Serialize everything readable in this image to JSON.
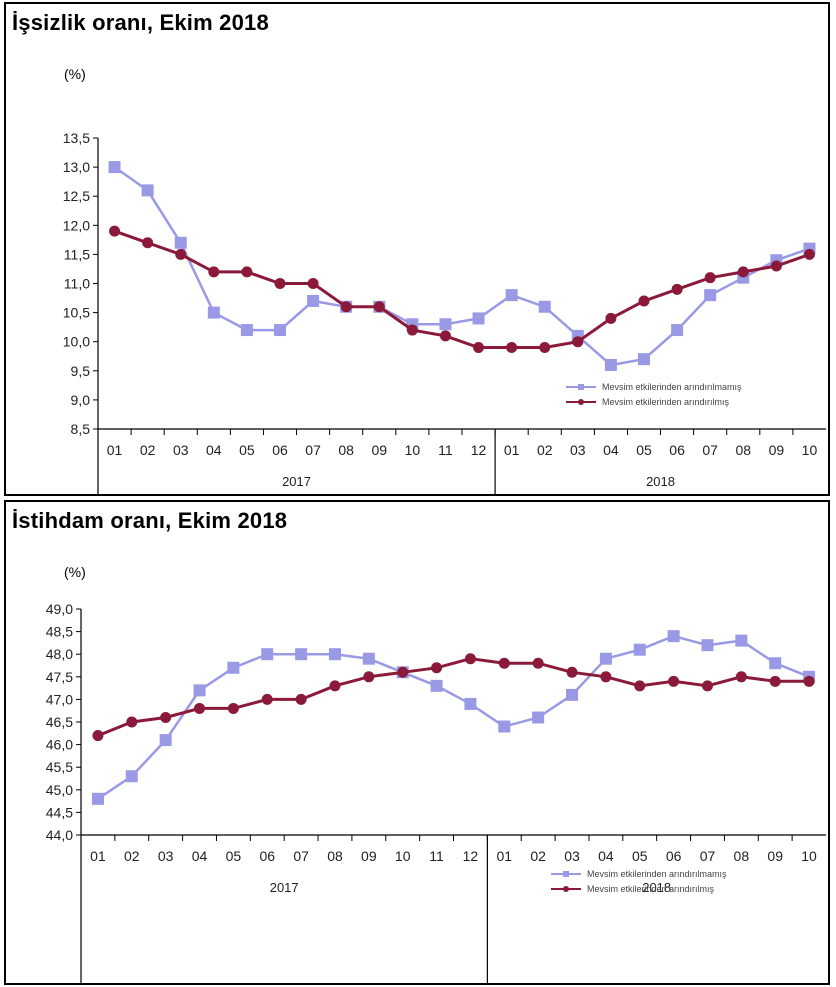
{
  "chart_data": [
    {
      "type": "line",
      "title": "İşsizlik oranı, Ekim 2018",
      "ylabel": "(%)",
      "xlabel": "",
      "ylim": [
        8.5,
        13.5
      ],
      "yticks": [
        "13,5",
        "13,0",
        "12,5",
        "12,0",
        "11,5",
        "11,0",
        "10,5",
        "10,0",
        "9,5",
        "9,0",
        "8,5"
      ],
      "ytick_values": [
        13.5,
        13.0,
        12.5,
        12.0,
        11.5,
        11.0,
        10.5,
        10.0,
        9.5,
        9.0,
        8.5
      ],
      "categories": [
        "01",
        "02",
        "03",
        "04",
        "05",
        "06",
        "07",
        "08",
        "09",
        "10",
        "11",
        "12",
        "01",
        "02",
        "03",
        "04",
        "05",
        "06",
        "07",
        "08",
        "09",
        "10"
      ],
      "years": [
        {
          "label": "2017",
          "span": 12
        },
        {
          "label": "2018",
          "span": 10
        }
      ],
      "legend_position": "bottom-right",
      "grid": false,
      "series": [
        {
          "name": "Mevsim etkilerinden arındırılmamış",
          "color": "#9999e6",
          "marker": "square",
          "values": [
            13.0,
            12.6,
            11.7,
            10.5,
            10.2,
            10.2,
            10.7,
            10.6,
            10.6,
            10.3,
            10.3,
            10.4,
            10.8,
            10.6,
            10.1,
            9.6,
            9.7,
            10.2,
            10.8,
            11.1,
            11.4,
            11.6
          ]
        },
        {
          "name": "Mevsim etkilerinden arındırılmış",
          "color": "#8b1a3a",
          "marker": "circle",
          "values": [
            11.9,
            11.7,
            11.5,
            11.2,
            11.2,
            11.0,
            11.0,
            10.6,
            10.6,
            10.2,
            10.1,
            9.9,
            9.9,
            9.9,
            10.0,
            10.4,
            10.7,
            10.9,
            11.1,
            11.2,
            11.3,
            11.5
          ]
        }
      ]
    },
    {
      "type": "line",
      "title": "İstihdam oranı, Ekim 2018",
      "ylabel": "(%)",
      "xlabel": "",
      "ylim": [
        44.0,
        49.0
      ],
      "yticks": [
        "49,0",
        "48,5",
        "48,0",
        "47,5",
        "47,0",
        "46,5",
        "46,0",
        "45,5",
        "45,0",
        "44,5",
        "44,0"
      ],
      "ytick_values": [
        49.0,
        48.5,
        48.0,
        47.5,
        47.0,
        46.5,
        46.0,
        45.5,
        45.0,
        44.5,
        44.0
      ],
      "categories": [
        "01",
        "02",
        "03",
        "04",
        "05",
        "06",
        "07",
        "08",
        "09",
        "10",
        "11",
        "12",
        "01",
        "02",
        "03",
        "04",
        "05",
        "06",
        "07",
        "08",
        "09",
        "10"
      ],
      "years": [
        {
          "label": "2017",
          "span": 12
        },
        {
          "label": "2018",
          "span": 10
        }
      ],
      "legend_position": "bottom-right",
      "grid": false,
      "series": [
        {
          "name": "Mevsim etkilerinden arındırılmamış",
          "color": "#9999e6",
          "marker": "square",
          "values": [
            44.8,
            45.3,
            46.1,
            47.2,
            47.7,
            48.0,
            48.0,
            48.0,
            47.9,
            47.6,
            47.3,
            46.9,
            46.4,
            46.6,
            47.1,
            47.9,
            48.1,
            48.4,
            48.2,
            48.3,
            47.8,
            47.5
          ]
        },
        {
          "name": "Mevsim etkilerinden arındırılmış",
          "color": "#8b1a3a",
          "marker": "circle",
          "values": [
            46.2,
            46.5,
            46.6,
            46.8,
            46.8,
            47.0,
            47.0,
            47.3,
            47.5,
            47.6,
            47.7,
            47.9,
            47.8,
            47.8,
            47.6,
            47.5,
            47.3,
            47.4,
            47.3,
            47.5,
            47.4,
            47.4
          ]
        }
      ]
    }
  ]
}
